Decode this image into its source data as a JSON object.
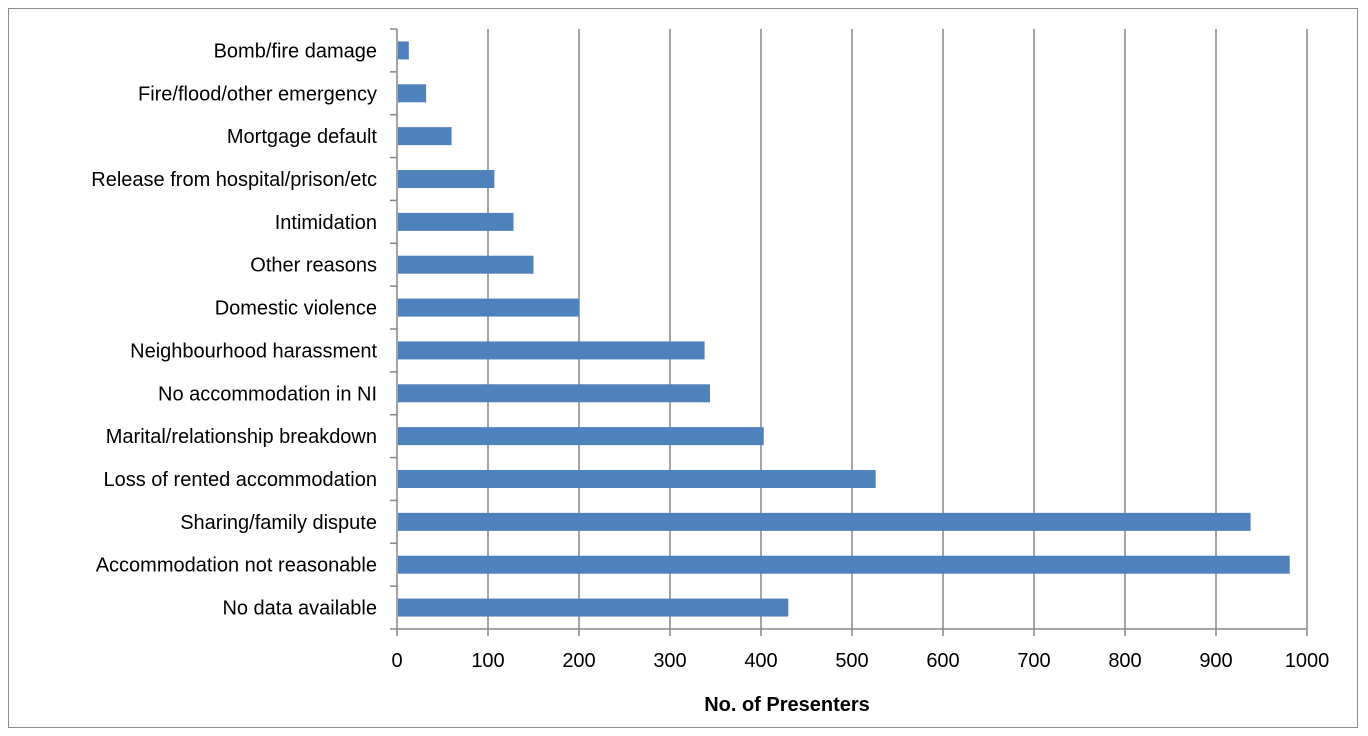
{
  "chart_data": {
    "type": "bar",
    "orientation": "horizontal",
    "categories": [
      "Bomb/fire damage",
      "Fire/flood/other emergency",
      "Mortgage default",
      "Release from hospital/prison/etc",
      "Intimidation",
      "Other reasons",
      "Domestic violence",
      "Neighbourhood harassment",
      "No accommodation in NI",
      "Marital/relationship breakdown",
      "Loss of rented accommodation",
      "Sharing/family dispute",
      "Accommodation not reasonable",
      "No data available"
    ],
    "values": [
      13,
      32,
      60,
      107,
      128,
      150,
      200,
      338,
      344,
      403,
      526,
      938,
      981,
      430
    ],
    "xlabel": "No. of Presenters",
    "xlim": [
      0,
      1000
    ],
    "xticks": [
      "0",
      "100",
      "200",
      "300",
      "400",
      "500",
      "600",
      "700",
      "800",
      "900",
      "1000"
    ],
    "grid": "vertical",
    "legend": "none",
    "bar_color": "#4f81bd",
    "grid_color": "#868686"
  }
}
